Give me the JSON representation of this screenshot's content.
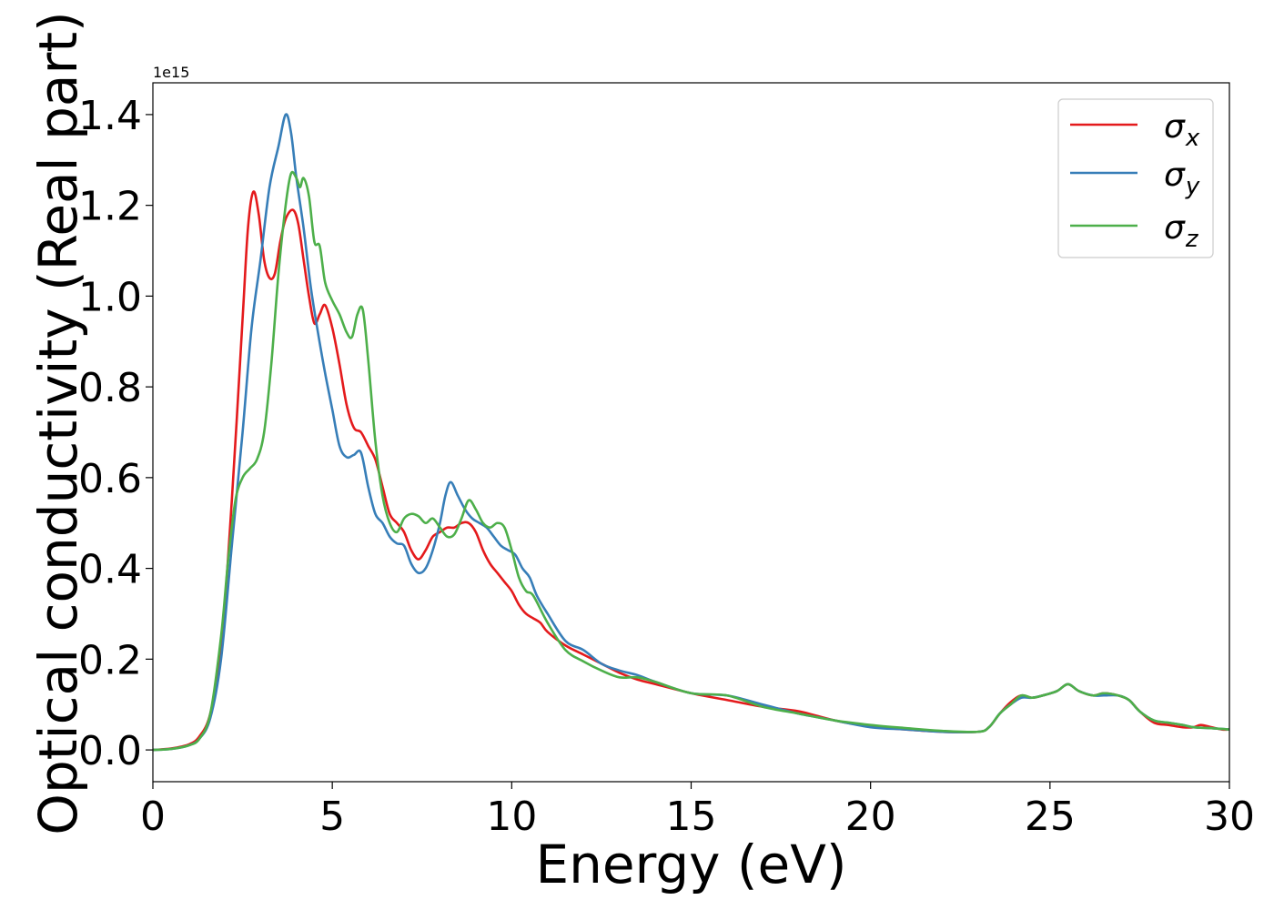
{
  "chart_data": {
    "type": "line",
    "title": "",
    "xlabel": "Energy (eV)",
    "ylabel": "Optical conductivity (Real part)",
    "offset_label": "1e15",
    "xlim": [
      0,
      30
    ],
    "ylim": [
      -0.07,
      1.47
    ],
    "xticks": [
      0,
      5,
      10,
      15,
      20,
      25,
      30
    ],
    "yticks": [
      0.0,
      0.2,
      0.4,
      0.6,
      0.8,
      1.0,
      1.2,
      1.4
    ],
    "xtick_labels": [
      "0",
      "5",
      "10",
      "15",
      "20",
      "25",
      "30"
    ],
    "ytick_labels": [
      "0.0",
      "0.2",
      "0.4",
      "0.6",
      "0.8",
      "1.0",
      "1.2",
      "1.4"
    ],
    "grid": false,
    "legend_position": "top-right",
    "series": [
      {
        "name": "σx",
        "symbol": "σ",
        "subscript": "x",
        "color": "#e41a1c",
        "x": [
          0,
          0.5,
          1.0,
          1.3,
          1.6,
          1.9,
          2.2,
          2.5,
          2.65,
          2.8,
          2.95,
          3.1,
          3.25,
          3.4,
          3.55,
          3.7,
          3.9,
          4.05,
          4.2,
          4.35,
          4.5,
          4.65,
          4.8,
          5.0,
          5.2,
          5.4,
          5.6,
          5.8,
          6.0,
          6.2,
          6.4,
          6.6,
          6.8,
          7.0,
          7.2,
          7.4,
          7.6,
          7.8,
          8.0,
          8.2,
          8.4,
          8.6,
          8.8,
          9.0,
          9.2,
          9.4,
          9.6,
          9.8,
          10.0,
          10.2,
          10.4,
          10.6,
          10.8,
          11.0,
          11.5,
          12.0,
          12.5,
          13.0,
          13.5,
          14.0,
          15.0,
          16.0,
          17.0,
          18.0,
          19.0,
          20.0,
          21.0,
          22.0,
          23.0,
          23.3,
          23.6,
          23.9,
          24.2,
          24.5,
          24.8,
          25.2,
          25.5,
          25.8,
          26.2,
          26.5,
          26.9,
          27.2,
          27.5,
          27.9,
          28.3,
          28.7,
          29.0,
          29.2,
          29.5,
          29.8,
          30.0
        ],
        "y": [
          0.0,
          0.003,
          0.012,
          0.03,
          0.08,
          0.22,
          0.55,
          0.95,
          1.15,
          1.23,
          1.18,
          1.08,
          1.04,
          1.05,
          1.12,
          1.17,
          1.19,
          1.16,
          1.08,
          1.0,
          0.94,
          0.96,
          0.98,
          0.93,
          0.85,
          0.76,
          0.71,
          0.7,
          0.67,
          0.64,
          0.58,
          0.52,
          0.5,
          0.48,
          0.44,
          0.42,
          0.44,
          0.47,
          0.48,
          0.49,
          0.49,
          0.5,
          0.5,
          0.48,
          0.44,
          0.41,
          0.39,
          0.37,
          0.35,
          0.32,
          0.3,
          0.29,
          0.28,
          0.26,
          0.23,
          0.21,
          0.19,
          0.17,
          0.155,
          0.145,
          0.125,
          0.11,
          0.095,
          0.085,
          0.065,
          0.052,
          0.045,
          0.04,
          0.04,
          0.05,
          0.08,
          0.105,
          0.12,
          0.115,
          0.12,
          0.13,
          0.145,
          0.13,
          0.12,
          0.125,
          0.12,
          0.11,
          0.085,
          0.06,
          0.055,
          0.05,
          0.05,
          0.055,
          0.05,
          0.045,
          0.045
        ]
      },
      {
        "name": "σy",
        "symbol": "σ",
        "subscript": "y",
        "color": "#377eb8",
        "x": [
          0,
          0.5,
          1.0,
          1.3,
          1.6,
          1.9,
          2.2,
          2.5,
          2.75,
          3.0,
          3.25,
          3.5,
          3.7,
          3.85,
          4.0,
          4.2,
          4.4,
          4.6,
          4.8,
          5.0,
          5.2,
          5.4,
          5.6,
          5.8,
          6.0,
          6.2,
          6.4,
          6.6,
          6.8,
          7.0,
          7.2,
          7.4,
          7.6,
          7.8,
          8.0,
          8.15,
          8.3,
          8.5,
          8.7,
          8.9,
          9.1,
          9.3,
          9.5,
          9.7,
          9.9,
          10.1,
          10.3,
          10.5,
          10.7,
          11.0,
          11.5,
          12.0,
          12.5,
          13.0,
          13.5,
          14.0,
          15.0,
          16.0,
          17.0,
          18.0,
          19.0,
          20.0,
          21.0,
          22.0,
          23.0,
          23.3,
          23.6,
          23.9,
          24.2,
          24.5,
          24.8,
          25.2,
          25.5,
          25.8,
          26.2,
          26.5,
          26.9,
          27.2,
          27.5,
          27.9,
          28.3,
          28.7,
          29.0,
          29.5,
          30.0
        ],
        "y": [
          0.0,
          0.002,
          0.01,
          0.025,
          0.07,
          0.2,
          0.45,
          0.7,
          0.93,
          1.08,
          1.24,
          1.33,
          1.4,
          1.36,
          1.26,
          1.15,
          1.02,
          0.92,
          0.83,
          0.75,
          0.67,
          0.645,
          0.65,
          0.655,
          0.58,
          0.52,
          0.5,
          0.47,
          0.455,
          0.45,
          0.41,
          0.39,
          0.4,
          0.44,
          0.5,
          0.56,
          0.59,
          0.56,
          0.53,
          0.51,
          0.5,
          0.49,
          0.47,
          0.45,
          0.44,
          0.43,
          0.4,
          0.38,
          0.34,
          0.3,
          0.24,
          0.22,
          0.19,
          0.175,
          0.165,
          0.15,
          0.125,
          0.12,
          0.1,
          0.08,
          0.065,
          0.05,
          0.045,
          0.04,
          0.04,
          0.05,
          0.08,
          0.1,
          0.115,
          0.115,
          0.12,
          0.13,
          0.145,
          0.13,
          0.12,
          0.12,
          0.12,
          0.11,
          0.085,
          0.065,
          0.06,
          0.055,
          0.05,
          0.048,
          0.045
        ]
      },
      {
        "name": "σz",
        "symbol": "σ",
        "subscript": "z",
        "color": "#4daf4a",
        "x": [
          0,
          0.5,
          1.0,
          1.3,
          1.6,
          1.9,
          2.1,
          2.3,
          2.5,
          2.7,
          2.9,
          3.1,
          3.3,
          3.5,
          3.7,
          3.85,
          4.0,
          4.1,
          4.2,
          4.35,
          4.5,
          4.65,
          4.8,
          5.0,
          5.2,
          5.4,
          5.55,
          5.7,
          5.85,
          6.0,
          6.2,
          6.4,
          6.6,
          6.8,
          7.0,
          7.2,
          7.4,
          7.6,
          7.8,
          8.0,
          8.2,
          8.4,
          8.6,
          8.8,
          9.0,
          9.2,
          9.4,
          9.6,
          9.8,
          10.0,
          10.2,
          10.4,
          10.6,
          11.0,
          11.5,
          12.0,
          12.5,
          13.0,
          13.5,
          14.0,
          15.0,
          16.0,
          17.0,
          18.0,
          19.0,
          20.0,
          21.0,
          22.0,
          23.0,
          23.3,
          23.6,
          23.9,
          24.2,
          24.5,
          24.8,
          25.2,
          25.5,
          25.8,
          26.2,
          26.5,
          26.9,
          27.2,
          27.5,
          27.9,
          28.3,
          28.7,
          29.0,
          29.5,
          30.0
        ],
        "y": [
          0.0,
          0.002,
          0.01,
          0.025,
          0.08,
          0.25,
          0.42,
          0.55,
          0.6,
          0.62,
          0.64,
          0.7,
          0.85,
          1.05,
          1.2,
          1.27,
          1.26,
          1.24,
          1.26,
          1.22,
          1.12,
          1.11,
          1.03,
          0.99,
          0.96,
          0.92,
          0.91,
          0.96,
          0.97,
          0.86,
          0.68,
          0.56,
          0.5,
          0.48,
          0.51,
          0.52,
          0.515,
          0.5,
          0.51,
          0.49,
          0.47,
          0.475,
          0.51,
          0.55,
          0.53,
          0.5,
          0.49,
          0.5,
          0.49,
          0.44,
          0.38,
          0.35,
          0.34,
          0.28,
          0.22,
          0.195,
          0.175,
          0.16,
          0.16,
          0.15,
          0.125,
          0.12,
          0.095,
          0.08,
          0.065,
          0.055,
          0.048,
          0.042,
          0.04,
          0.05,
          0.08,
          0.1,
          0.12,
          0.115,
          0.12,
          0.13,
          0.145,
          0.13,
          0.12,
          0.125,
          0.12,
          0.11,
          0.085,
          0.065,
          0.06,
          0.055,
          0.05,
          0.048,
          0.045
        ]
      }
    ]
  }
}
